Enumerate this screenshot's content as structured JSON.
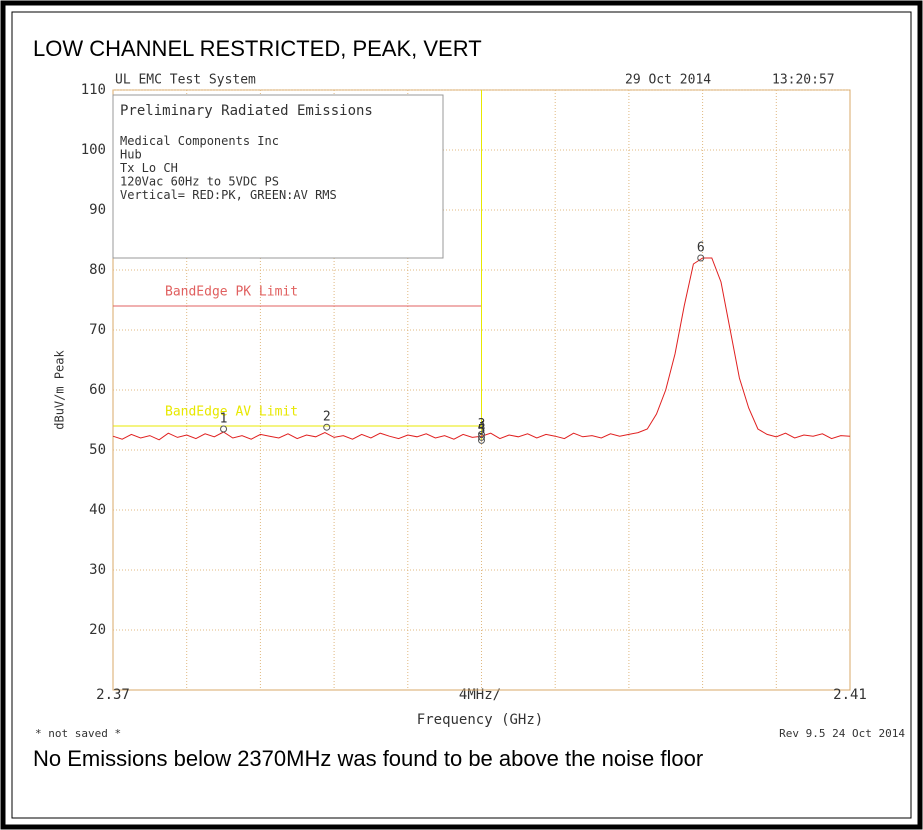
{
  "chart_data": {
    "type": "line",
    "title": "LOW CHANNEL RESTRICTED, PEAK, VERT",
    "header_left": "UL EMC Test System",
    "header_date": "29 Oct 2014",
    "header_time": "13:20:57",
    "info_box": [
      "Preliminary Radiated Emissions",
      "Medical Components Inc",
      "Hub",
      "Tx Lo CH",
      "120Vac 60Hz to 5VDC PS",
      "Vertical= RED:PK, GREEN:AV RMS"
    ],
    "y_label": "dBuV/m Peak",
    "x_label": "Frequency (GHz)",
    "x_span_label": "4MHz/",
    "footer_left": "* not saved *",
    "footer_right": "Rev 9.5 24 Oct 2014",
    "note": "No Emissions below 2370MHz was found to be above the noise floor",
    "xlim": [
      2.37,
      2.41
    ],
    "xticks": [
      2.37,
      2.41
    ],
    "xgrid": [
      2.374,
      2.378,
      2.382,
      2.386,
      2.39,
      2.394,
      2.398,
      2.402,
      2.406
    ],
    "ylim": [
      10,
      110
    ],
    "yticks": [
      20,
      30,
      40,
      50,
      60,
      70,
      80,
      90,
      100,
      110
    ],
    "grid": true,
    "color": "#e02020",
    "x": [
      2.37,
      2.3705,
      2.371,
      2.3715,
      2.372,
      2.3725,
      2.373,
      2.3735,
      2.374,
      2.3745,
      2.375,
      2.3755,
      2.376,
      2.3765,
      2.377,
      2.3775,
      2.378,
      2.3785,
      2.379,
      2.3795,
      2.38,
      2.3805,
      2.381,
      2.3815,
      2.382,
      2.3825,
      2.383,
      2.3835,
      2.384,
      2.3845,
      2.385,
      2.3855,
      2.386,
      2.3865,
      2.387,
      2.3875,
      2.388,
      2.3885,
      2.389,
      2.3895,
      2.39,
      2.3905,
      2.391,
      2.3915,
      2.392,
      2.3925,
      2.393,
      2.3935,
      2.394,
      2.3945,
      2.395,
      2.3955,
      2.396,
      2.3965,
      2.397,
      2.3975,
      2.398,
      2.3985,
      2.399,
      2.3995,
      2.4,
      2.4005,
      2.401,
      2.4015,
      2.402,
      2.4025,
      2.403,
      2.4035,
      2.404,
      2.4045,
      2.405,
      2.4055,
      2.406,
      2.4065,
      2.407,
      2.4075,
      2.408,
      2.4085,
      2.409,
      2.4095,
      2.41
    ],
    "values": [
      52.3,
      51.8,
      52.6,
      52.0,
      52.4,
      51.7,
      52.8,
      52.1,
      52.5,
      51.9,
      52.7,
      52.2,
      53.0,
      52.0,
      52.4,
      51.8,
      52.6,
      52.3,
      52.0,
      52.7,
      51.9,
      52.5,
      52.2,
      52.9,
      52.1,
      52.4,
      51.8,
      52.6,
      52.0,
      52.8,
      52.3,
      51.9,
      52.5,
      52.2,
      52.7,
      52.0,
      52.4,
      51.8,
      52.6,
      52.1,
      52.3,
      52.8,
      51.9,
      52.5,
      52.2,
      52.7,
      52.0,
      52.6,
      52.3,
      51.9,
      52.8,
      52.2,
      52.4,
      52.0,
      52.7,
      52.3,
      52.6,
      52.9,
      53.5,
      56.0,
      60.0,
      66.0,
      74.0,
      81.0,
      82.0,
      82.0,
      78.0,
      70.0,
      62.0,
      57.0,
      53.5,
      52.6,
      52.2,
      52.8,
      52.0,
      52.5,
      52.3,
      52.7,
      51.9,
      52.4,
      52.3
    ],
    "limits": [
      {
        "name": "BandEdge PK Limit",
        "value": 74,
        "x": [
          2.37,
          2.39
        ],
        "color": "#e06060"
      },
      {
        "name": "BandEdge AV Limit",
        "value": 54,
        "x": [
          2.37,
          2.39
        ],
        "color": "#e8e800"
      }
    ],
    "markers": [
      {
        "label": "1",
        "x": 2.376,
        "y": 53.5
      },
      {
        "label": "2",
        "x": 2.3816,
        "y": 53.8
      },
      {
        "label": "3",
        "x": 2.39,
        "y": 52.6
      },
      {
        "label": "4",
        "x": 2.39,
        "y": 52.1
      },
      {
        "label": "5",
        "x": 2.39,
        "y": 51.6
      },
      {
        "label": "6",
        "x": 2.4019,
        "y": 82
      }
    ]
  }
}
